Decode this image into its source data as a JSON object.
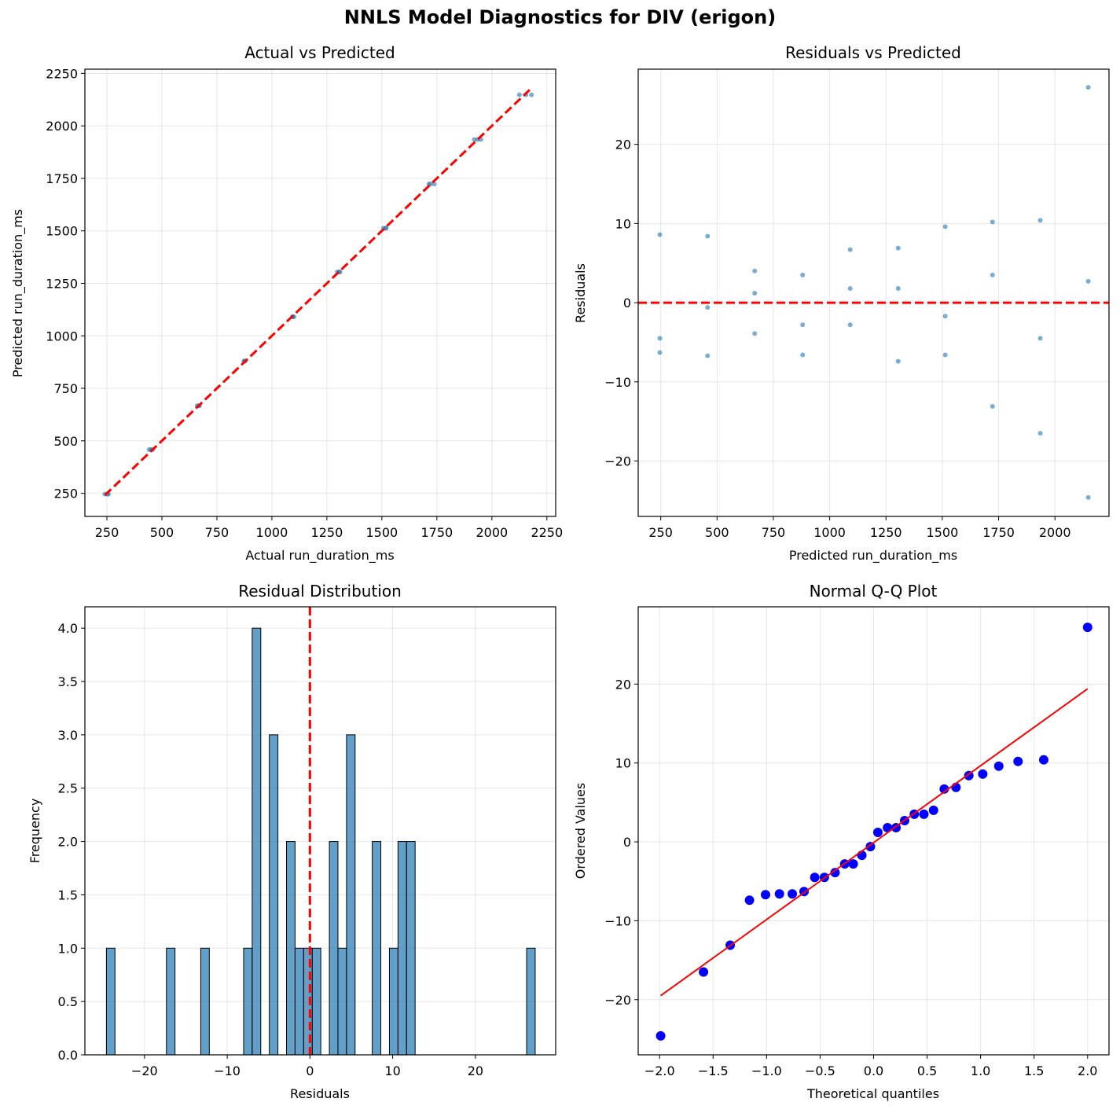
{
  "suptitle": "NNLS Model Diagnostics for DIV (erigon)",
  "colors": {
    "point": "#1f77b4",
    "ref": "#ff0000",
    "qq_point": "#0000ff",
    "bar": "#1f77b4"
  },
  "chart_data": [
    {
      "type": "scatter",
      "title": "Actual vs Predicted",
      "xlabel": "Actual run_duration_ms",
      "ylabel": "Predicted run_duration_ms",
      "xlim": [
        150,
        2290
      ],
      "ylim": [
        140,
        2270
      ],
      "xticks": [
        250,
        500,
        750,
        1000,
        1250,
        1500,
        1750,
        2000,
        2250
      ],
      "yticks": [
        250,
        500,
        750,
        1000,
        1250,
        1500,
        1750,
        2000,
        2250
      ],
      "points": {
        "x": [
          241,
          252,
          257,
          442,
          451,
          458,
          660,
          667,
          671,
          873,
          876,
          879,
          1093,
          1096,
          1100,
          1297,
          1305,
          1310,
          1507,
          1516,
          1520,
          1714,
          1720,
          1738,
          1920,
          1935,
          1950,
          2125,
          2155,
          2180
        ],
        "y": [
          246,
          246,
          246,
          458,
          458,
          458,
          667,
          667,
          667,
          880,
          880,
          880,
          1091,
          1091,
          1091,
          1304,
          1304,
          1304,
          1513,
          1513,
          1513,
          1723,
          1723,
          1723,
          1935,
          1935,
          1935,
          2148,
          2148,
          2148
        ]
      },
      "reference_line": {
        "x": [
          241,
          2180
        ],
        "y": [
          241,
          2180
        ],
        "style": "dashed"
      }
    },
    {
      "type": "scatter",
      "title": "Residuals vs Predicted",
      "xlabel": "Predicted run_duration_ms",
      "ylabel": "Residuals",
      "xlim": [
        150,
        2240
      ],
      "ylim": [
        -27,
        29.5
      ],
      "xticks": [
        250,
        500,
        750,
        1000,
        1250,
        1500,
        1750,
        2000
      ],
      "yticks": [
        -20,
        -10,
        0,
        10,
        20
      ],
      "points": {
        "x": [
          246,
          246,
          246,
          458,
          458,
          458,
          667,
          667,
          667,
          880,
          880,
          880,
          1091,
          1091,
          1091,
          1304,
          1304,
          1304,
          1513,
          1513,
          1513,
          1723,
          1723,
          1723,
          1935,
          1935,
          1935,
          2148,
          2148,
          2148
        ],
        "y": [
          8.6,
          -4.5,
          -6.3,
          8.4,
          -0.6,
          -6.7,
          4.0,
          1.2,
          -3.9,
          3.5,
          -2.8,
          -6.6,
          6.7,
          1.8,
          -2.8,
          6.9,
          1.8,
          -7.4,
          9.6,
          -1.7,
          -6.6,
          10.2,
          3.5,
          -13.1,
          10.4,
          -4.5,
          -16.5,
          27.2,
          2.7,
          -24.6
        ]
      },
      "reference_line": {
        "y": 0,
        "style": "dashed"
      }
    },
    {
      "type": "bar",
      "subtype": "histogram",
      "title": "Residual Distribution",
      "xlabel": "Residuals",
      "ylabel": "Frequency",
      "xlim": [
        -27.2,
        29.7
      ],
      "ylim": [
        0,
        4.2
      ],
      "xticks": [
        -20,
        -10,
        0,
        10,
        20
      ],
      "yticks": [
        0.0,
        0.5,
        1.0,
        1.5,
        2.0,
        2.5,
        3.0,
        3.5,
        4.0
      ],
      "bin_start": -24.6,
      "bin_width": 1.0365,
      "counts": [
        1,
        0,
        0,
        0,
        0,
        0,
        0,
        1,
        0,
        0,
        0,
        1,
        0,
        0,
        0,
        0,
        1,
        4,
        0,
        3,
        0,
        2,
        1,
        1,
        1,
        0,
        2,
        1,
        3,
        0,
        0,
        2,
        0,
        1,
        2,
        2,
        0,
        0,
        0,
        0,
        0,
        0,
        0,
        0,
        0,
        0,
        0,
        0,
        0,
        1
      ],
      "reference_line": {
        "x": 0,
        "style": "dashed"
      }
    },
    {
      "type": "scatter",
      "subtype": "qq",
      "title": "Normal Q-Q Plot",
      "xlabel": "Theoretical quantiles",
      "ylabel": "Ordered Values",
      "xlim": [
        -2.2,
        2.2
      ],
      "ylim": [
        -27,
        29.8
      ],
      "xticks": [
        -2.0,
        -1.5,
        -1.0,
        -0.5,
        0.0,
        0.5,
        1.0,
        1.5,
        2.0
      ],
      "yticks": [
        -20,
        -10,
        0,
        10,
        20
      ],
      "points": {
        "x": [
          -1.99,
          -1.59,
          -1.34,
          -1.16,
          -1.01,
          -0.88,
          -0.76,
          -0.65,
          -0.55,
          -0.46,
          -0.36,
          -0.27,
          -0.19,
          -0.11,
          -0.03,
          0.04,
          0.13,
          0.21,
          0.29,
          0.38,
          0.47,
          0.56,
          0.66,
          0.77,
          0.89,
          1.02,
          1.17,
          1.35,
          1.59,
          2.0
        ],
        "y": [
          -24.6,
          -16.5,
          -13.1,
          -7.4,
          -6.7,
          -6.6,
          -6.6,
          -6.3,
          -4.5,
          -4.5,
          -3.9,
          -2.8,
          -2.8,
          -1.7,
          -0.6,
          1.2,
          1.8,
          1.8,
          2.7,
          3.5,
          3.5,
          4.0,
          6.7,
          6.9,
          8.4,
          8.6,
          9.6,
          10.2,
          10.4,
          27.2
        ]
      },
      "fit_line": {
        "x": [
          -1.99,
          2.0
        ],
        "y": [
          -19.5,
          19.4
        ]
      }
    }
  ]
}
